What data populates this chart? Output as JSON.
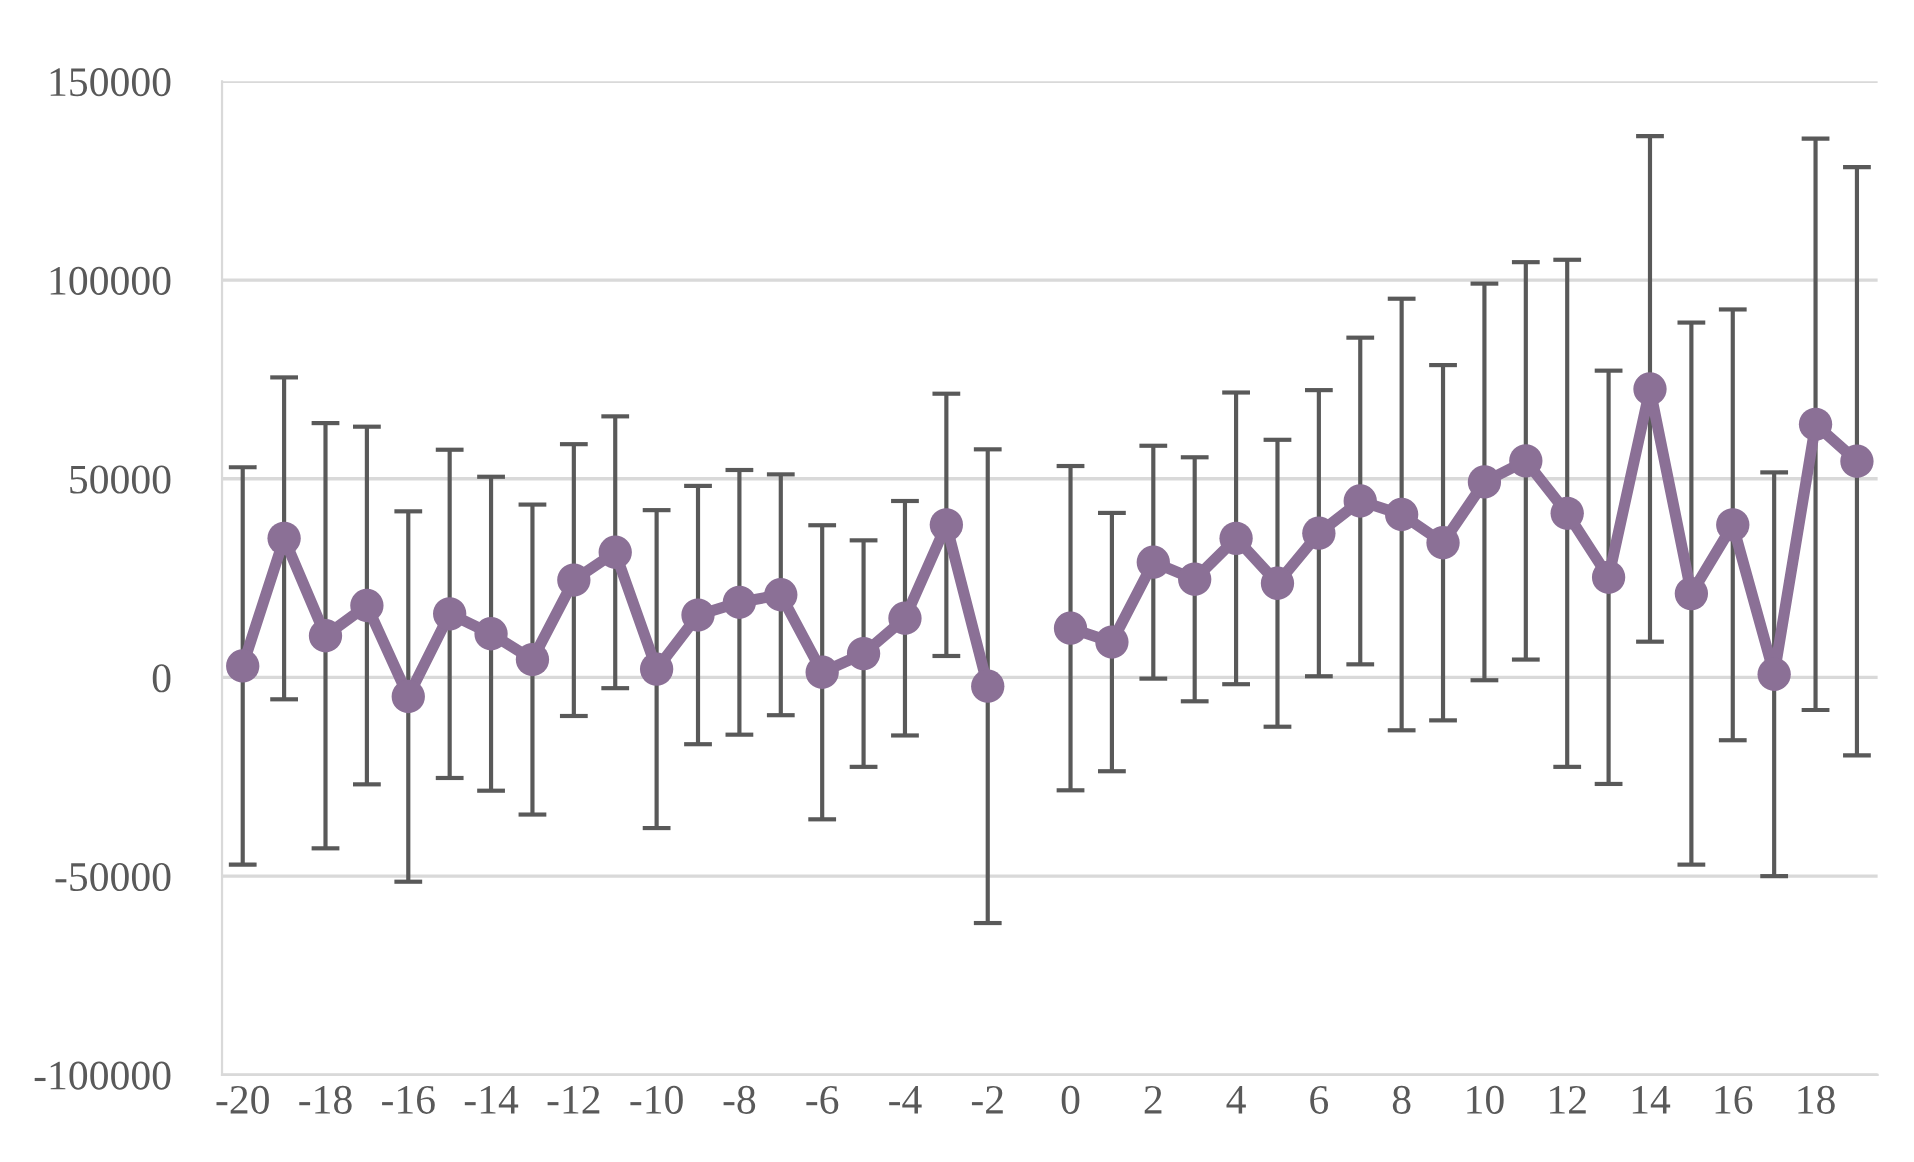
{
  "chart_data": {
    "type": "line",
    "categories": [
      "-20",
      null,
      "-18",
      null,
      "-16",
      null,
      "-14",
      null,
      "-12",
      null,
      "-10",
      null,
      "-8",
      null,
      "-6",
      null,
      "-4",
      null,
      "-2",
      null,
      "0",
      null,
      "2",
      null,
      "4",
      null,
      "6",
      null,
      "8",
      null,
      "10",
      null,
      "12",
      null,
      "14",
      null,
      "16",
      null,
      "18",
      null
    ],
    "series": [
      {
        "color": "#8b7096",
        "values": [
          2900,
          35000,
          10500,
          18100,
          -4800,
          16000,
          11000,
          4500,
          24500,
          31500,
          2100,
          15700,
          18900,
          20800,
          1300,
          6000,
          14900,
          38400,
          -2200,
          null,
          12400,
          8900,
          29000,
          24700,
          35000,
          23700,
          36300,
          44400,
          41000,
          33900,
          49200,
          54500,
          41300,
          25200,
          72600,
          21100,
          38400,
          800,
          63700,
          54400
        ],
        "errors": [
          50000,
          40500,
          53500,
          45000,
          46600,
          41300,
          39500,
          39000,
          34200,
          34200,
          40000,
          32500,
          33300,
          30300,
          37000,
          28500,
          29500,
          33000,
          59600,
          null,
          40800,
          32500,
          29300,
          30700,
          36700,
          36100,
          36000,
          41100,
          54300,
          44700,
          49900,
          50000,
          63800,
          52000,
          63600,
          68200,
          54200,
          50800,
          71900,
          74000
        ]
      }
    ],
    "ylim": [
      -100000,
      150000
    ],
    "yticks": [
      -100000,
      -50000,
      0,
      50000,
      100000,
      150000
    ],
    "grid": "y",
    "marker": "circle",
    "line_style": "solid",
    "legend": false
  }
}
